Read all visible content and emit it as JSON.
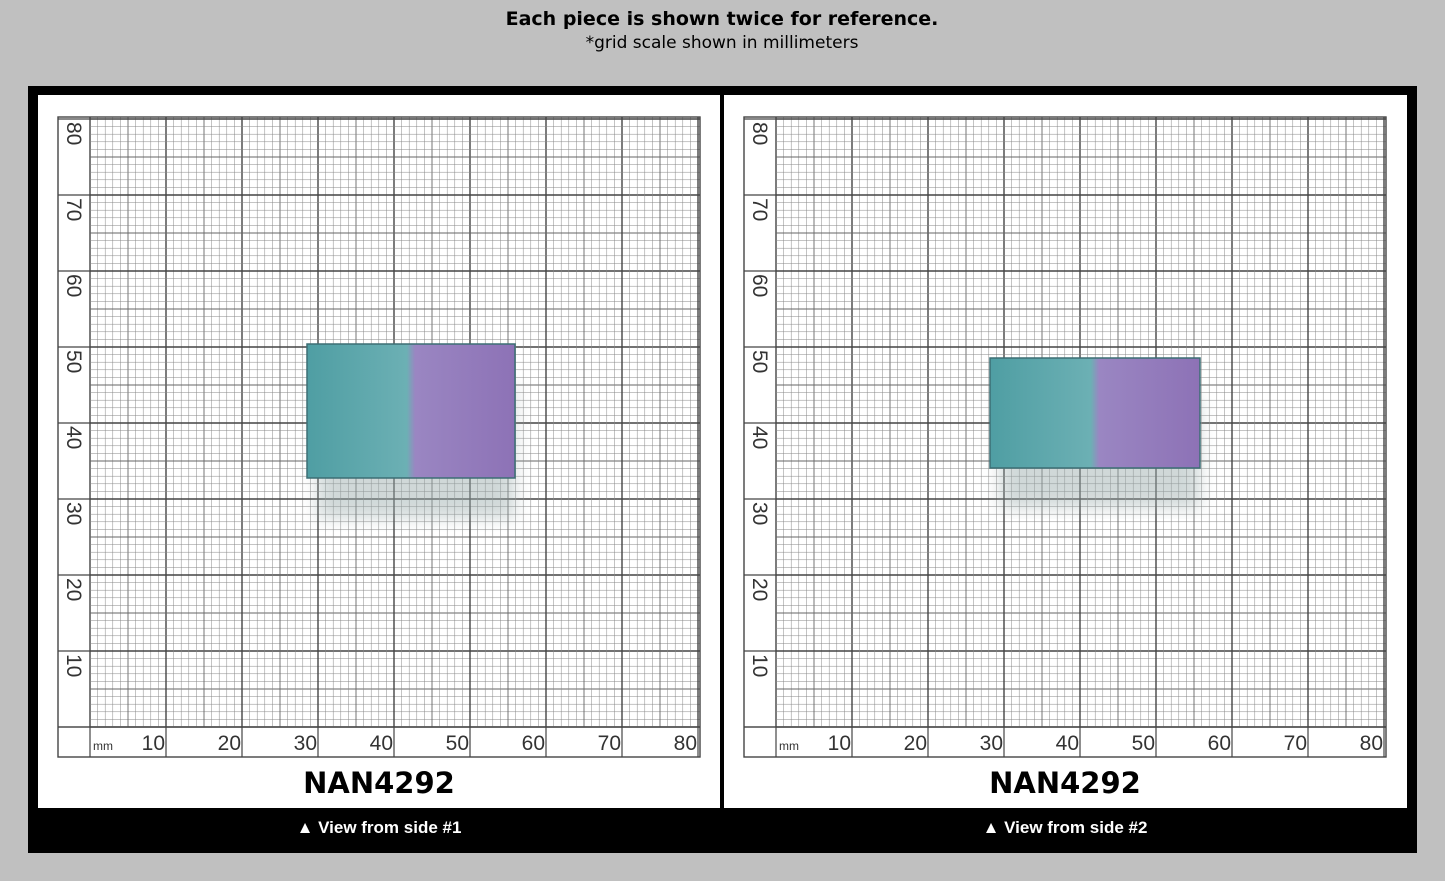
{
  "header": {
    "title": "Each piece is shown twice for reference.",
    "subtitle": "*grid scale shown in millimeters"
  },
  "grid": {
    "unit": "mm",
    "x_labels": [
      10,
      20,
      30,
      40,
      50,
      60,
      70,
      80
    ],
    "y_labels": [
      10,
      20,
      30,
      40,
      50,
      60,
      70,
      80
    ]
  },
  "panels": [
    {
      "id_label": "NAN4292",
      "caption": "▲ View from side #1"
    },
    {
      "id_label": "NAN4292",
      "caption": "▲ View from side #2"
    }
  ]
}
